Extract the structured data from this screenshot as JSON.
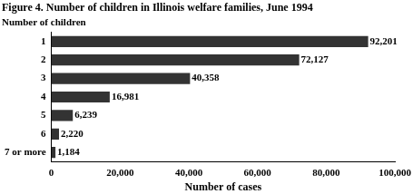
{
  "chart_data": {
    "type": "bar",
    "orientation": "horizontal",
    "title": "Figure 4. Number of children in Illinois welfare families, June 1994",
    "ylabel": "Number of children",
    "xlabel": "Number of cases",
    "categories": [
      "1",
      "2",
      "3",
      "4",
      "5",
      "6",
      "7 or more"
    ],
    "values": [
      92201,
      72127,
      40358,
      16981,
      6239,
      2220,
      1184
    ],
    "value_labels": [
      "92,201",
      "72,127",
      "40,358",
      "16,981",
      "6,239",
      "2,220",
      "1,184"
    ],
    "color": "#333333",
    "xlim": [
      0,
      100000
    ],
    "xticks": [
      0,
      {
        "value": 20000,
        "label": "20,000"
      },
      {
        "value": 40000,
        "label": "40,000"
      },
      {
        "value": 60000,
        "label": "60,000"
      },
      {
        "value": 80000,
        "label": "80,000"
      },
      {
        "value": 100000,
        "label": "100,000"
      }
    ],
    "grid": false,
    "data_labels": true
  }
}
